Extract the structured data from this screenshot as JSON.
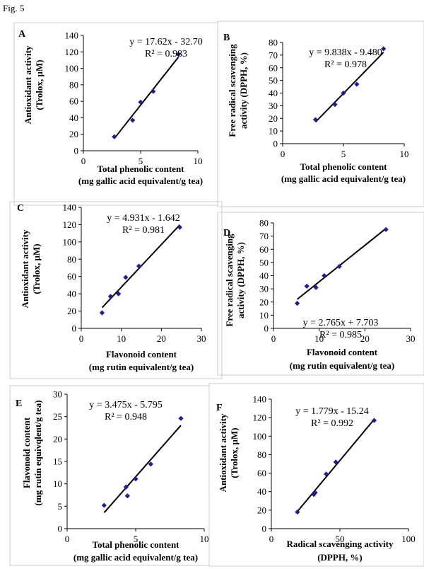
{
  "figure_label": "Fig. 5",
  "colors": {
    "marker": "#1f1f8f",
    "line": "#000000",
    "frame": "#cccccc"
  },
  "chart_data": [
    {
      "panel": "A",
      "type": "scatter",
      "ylabel_lines": [
        "Antioxidant activity",
        "(Trolox, µM)"
      ],
      "xlabel_lines": [
        "Total phenolic content",
        "(mg gallic acid equivalent/g tea)"
      ],
      "xlim": [
        0,
        10
      ],
      "ylim": [
        0,
        140
      ],
      "xticks": [
        0,
        5,
        10
      ],
      "yticks": [
        0,
        20,
        40,
        60,
        80,
        100,
        120,
        140
      ],
      "x": [
        2.7,
        4.3,
        5.0,
        6.1,
        8.3
      ],
      "y": [
        17,
        37,
        59,
        72,
        117
      ],
      "trendline": {
        "slope": 17.62,
        "intercept": -32.7,
        "x_range": [
          2.7,
          8.3
        ]
      },
      "equation": "y = 17.62x - 32.70",
      "r2": "R² = 0.983"
    },
    {
      "panel": "B",
      "type": "scatter",
      "ylabel_lines": [
        "Free radical scavenging",
        "activity (DPPH, %)"
      ],
      "xlabel_lines": [
        "Total  phenolic content",
        "(mg gallic acid equivalent/g tea)"
      ],
      "xlim": [
        0,
        10
      ],
      "ylim": [
        0,
        80
      ],
      "xticks": [
        0,
        5,
        10
      ],
      "yticks": [
        0,
        10,
        20,
        30,
        40,
        50,
        60,
        70,
        80
      ],
      "x": [
        2.7,
        4.3,
        5.0,
        6.1,
        8.3
      ],
      "y": [
        19,
        31,
        40,
        47,
        75
      ],
      "trendline": {
        "slope": 9.838,
        "intercept": -9.48,
        "x_range": [
          2.7,
          8.3
        ]
      },
      "equation": "y = 9.838x - 9.480",
      "r2": "R² = 0.978"
    },
    {
      "panel": "C",
      "type": "scatter",
      "ylabel_lines": [
        "Antioxidant activity",
        "(Trolox, µM)"
      ],
      "xlabel_lines": [
        "Flavonoid content",
        "(mg rutin equivalent/g tea)"
      ],
      "xlim": [
        0,
        30
      ],
      "ylim": [
        0,
        140
      ],
      "xticks": [
        0,
        10,
        20,
        30
      ],
      "yticks": [
        0,
        20,
        40,
        60,
        80,
        100,
        120,
        140
      ],
      "x": [
        5.2,
        7.3,
        9.3,
        11.1,
        14.4,
        24.6
      ],
      "y": [
        18,
        37,
        40,
        59,
        72,
        117
      ],
      "trendline": {
        "slope": 4.931,
        "intercept": -1.642,
        "x_range": [
          5.2,
          24.6
        ]
      },
      "equation": "y = 4.931x - 1.642",
      "r2": "R² = 0.981"
    },
    {
      "panel": "D",
      "type": "scatter",
      "ylabel_lines": [
        "Free radical scavenging",
        "activity (DPPH, %)"
      ],
      "xlabel_lines": [
        "Flavonoid content",
        "(mg rutin equivalent/g tea)"
      ],
      "xlim": [
        0,
        30
      ],
      "ylim": [
        0,
        80
      ],
      "xticks": [
        0,
        10,
        20,
        30
      ],
      "yticks": [
        0,
        10,
        20,
        30,
        40,
        50,
        60,
        70,
        80
      ],
      "x": [
        5.2,
        7.3,
        9.3,
        11.1,
        14.4,
        24.6
      ],
      "y": [
        19,
        32,
        31,
        40,
        47,
        75
      ],
      "trendline": {
        "slope": 2.765,
        "intercept": 7.703,
        "x_range": [
          5.2,
          24.6
        ]
      },
      "equation": "y = 2.765x + 7.703",
      "r2": "R² = 0.985"
    },
    {
      "panel": "E",
      "type": "scatter",
      "ylabel_lines": [
        "Flavonoid content",
        "(mg rutin equivqlent/g tea)"
      ],
      "xlabel_lines": [
        "Total phenolic content",
        "(mg gallic acid equivalent/g tea)"
      ],
      "xlim": [
        0,
        10
      ],
      "ylim": [
        0,
        30
      ],
      "xticks": [
        0,
        5,
        10
      ],
      "yticks": [
        0,
        5,
        10,
        15,
        20,
        25,
        30
      ],
      "x": [
        2.7,
        4.3,
        4.4,
        5.0,
        6.1,
        8.3
      ],
      "y": [
        5.2,
        9.3,
        7.3,
        11.1,
        14.4,
        24.6
      ],
      "trendline": {
        "slope": 3.475,
        "intercept": -5.795,
        "x_range": [
          2.7,
          8.3
        ]
      },
      "equation": "y = 3.475x - 5.795",
      "r2": "R² = 0.948"
    },
    {
      "panel": "F",
      "type": "scatter",
      "ylabel_lines": [
        "Antioxidant activity",
        "(Trolox, µM)"
      ],
      "xlabel_lines": [
        "Radical scavenging activity",
        "(DPPH, %)"
      ],
      "xlim": [
        0,
        100
      ],
      "ylim": [
        0,
        140
      ],
      "xticks": [
        0,
        50,
        100
      ],
      "yticks": [
        0,
        20,
        40,
        60,
        80,
        100,
        120,
        140
      ],
      "x": [
        19,
        31,
        32,
        40,
        47,
        75
      ],
      "y": [
        18,
        37,
        39,
        59,
        72,
        117
      ],
      "trendline": {
        "slope": 1.779,
        "intercept": -15.24,
        "x_range": [
          19,
          75
        ]
      },
      "equation": "y = 1.779x - 15.24",
      "r2": "R² = 0.992"
    }
  ]
}
